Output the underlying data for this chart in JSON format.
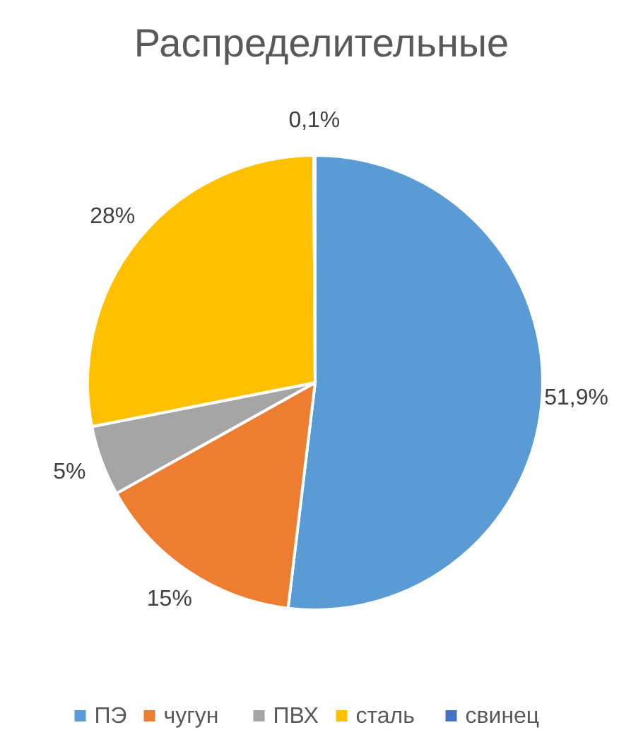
{
  "chart_data": {
    "type": "pie",
    "title": "Распределительные",
    "categories": [
      "ПЭ",
      "чугун",
      "ПВХ",
      "сталь",
      "свинец"
    ],
    "values": [
      51.9,
      15,
      5,
      28,
      0.1
    ],
    "colors": [
      "#5b9bd5",
      "#ed7d31",
      "#a5a5a5",
      "#ffc000",
      "#4472c4"
    ],
    "value_labels": [
      "51,9%",
      "15%",
      "5%",
      "28%",
      "0,1%"
    ],
    "legend": "bottom"
  }
}
